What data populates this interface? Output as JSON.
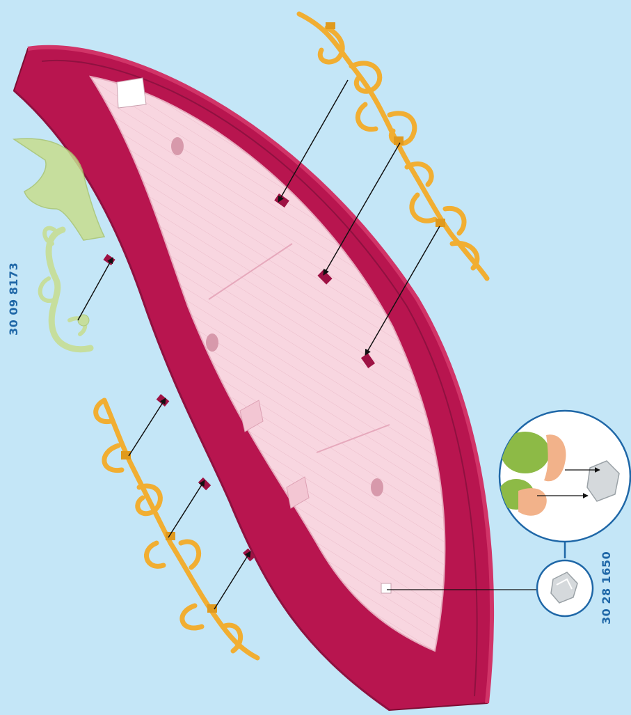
{
  "part_numbers": {
    "left": "30 09 8173",
    "right": "30 28 1650"
  },
  "colors": {
    "background": "#c4e6f7",
    "hull": "#b8154f",
    "deck": "#f8d6e0",
    "ornament": "#f1ae32",
    "ghost_part": "#c7dd8e",
    "clip": "#d5d9dc",
    "label": "#1f67a7",
    "callout_ring": "#1f67a7"
  }
}
